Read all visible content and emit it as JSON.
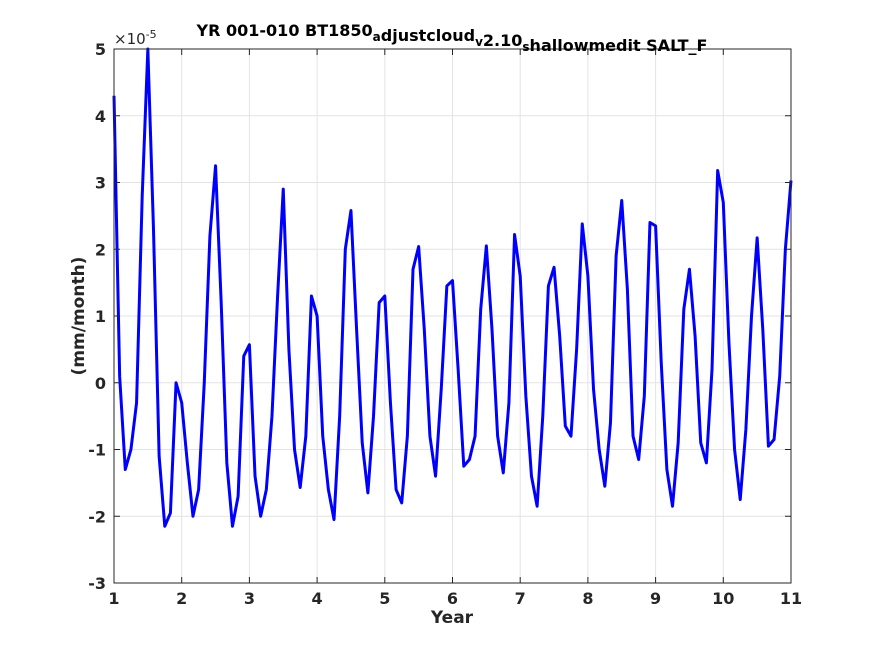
{
  "chart_data": {
    "type": "line",
    "title": {
      "parts": [
        {
          "text": "YR 001-010 BT1850",
          "sub": false
        },
        {
          "text": "a",
          "sub": true
        },
        {
          "text": "djustcloud",
          "sub": false
        },
        {
          "text": "v",
          "sub": true
        },
        {
          "text": "2.10",
          "sub": false
        },
        {
          "text": "s",
          "sub": true
        },
        {
          "text": "hallowmedit SALT_F",
          "sub": false
        }
      ]
    },
    "xlabel": "Year",
    "ylabel": "(mm/month)",
    "y_multiplier_base": "×10",
    "y_multiplier_exp": "-5",
    "xlim": [
      1,
      11
    ],
    "ylim": [
      -3,
      5
    ],
    "xticks": [
      "1",
      "2",
      "3",
      "4",
      "5",
      "6",
      "7",
      "8",
      "9",
      "10",
      "11"
    ],
    "yticks": [
      "-3",
      "-2",
      "-1",
      "0",
      "1",
      "2",
      "3",
      "4",
      "5"
    ],
    "grid": true,
    "line_color": "#0000ff",
    "series": [
      {
        "values": [
          4.3,
          0.1,
          -1.3,
          -1.0,
          -0.3,
          2.8,
          5.0,
          2.3,
          -1.1,
          -2.15,
          -1.95,
          0.0,
          -0.3,
          -1.2,
          -2.0,
          -1.6,
          0.0,
          2.2,
          3.25,
          1.2,
          -1.2,
          -2.15,
          -1.7,
          0.4,
          0.57,
          -1.4,
          -2.0,
          -1.6,
          -0.5,
          1.3,
          2.9,
          0.5,
          -1.0,
          -1.57,
          -0.8,
          1.3,
          1.0,
          -0.8,
          -1.6,
          -2.05,
          -0.5,
          2.0,
          2.58,
          0.8,
          -0.9,
          -1.65,
          -0.5,
          1.2,
          1.3,
          -0.3,
          -1.6,
          -1.8,
          -0.8,
          1.7,
          2.04,
          0.8,
          -0.8,
          -1.4,
          -0.1,
          1.45,
          1.53,
          0.2,
          -1.25,
          -1.15,
          -0.8,
          1.1,
          2.05,
          0.8,
          -0.8,
          -1.35,
          -0.3,
          2.22,
          1.6,
          -0.2,
          -1.4,
          -1.85,
          -0.5,
          1.45,
          1.73,
          0.7,
          -0.65,
          -0.8,
          0.5,
          2.38,
          1.6,
          -0.1,
          -1.0,
          -1.55,
          -0.6,
          1.9,
          2.73,
          1.4,
          -0.8,
          -1.15,
          -0.2,
          2.4,
          2.35,
          0.3,
          -1.3,
          -1.85,
          -0.9,
          1.1,
          1.7,
          0.7,
          -0.9,
          -1.2,
          0.2,
          3.18,
          2.7,
          0.6,
          -1.0,
          -1.75,
          -0.7,
          1.0,
          2.17,
          0.8,
          -0.95,
          -0.85,
          0.1,
          2.0,
          3.03
        ]
      }
    ]
  }
}
